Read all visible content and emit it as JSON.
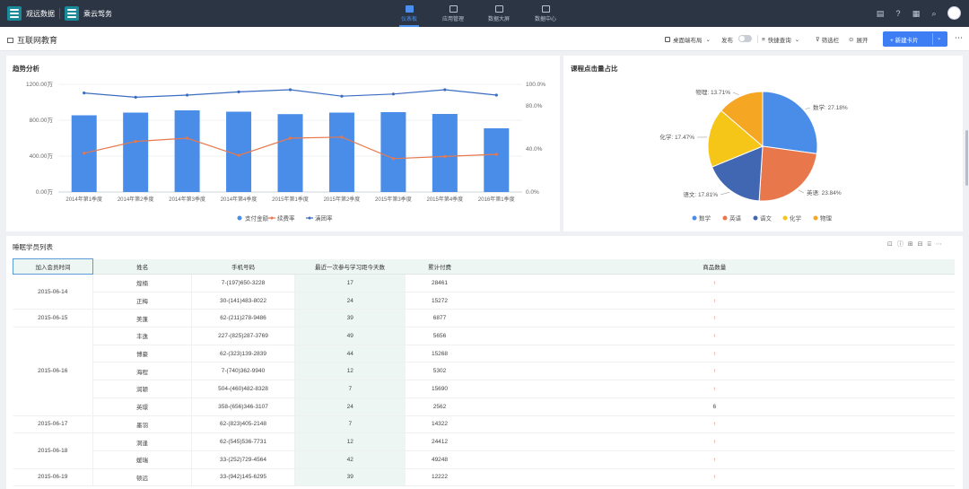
{
  "topbar": {
    "brand1": "观远数据",
    "brand2": "乘云驾务",
    "nav": [
      {
        "label": "仪表板",
        "icon": "bar-chart-icon",
        "active": true
      },
      {
        "label": "应用管理",
        "icon": "apps-icon",
        "active": false
      },
      {
        "label": "数据大屏",
        "icon": "screen-icon",
        "active": false
      },
      {
        "label": "数据中心",
        "icon": "database-icon",
        "active": false
      }
    ]
  },
  "subbar": {
    "page_title": "互联网教育",
    "desktop_layout": "桌面端布局",
    "publish": "发布",
    "quick_query": "快捷查询",
    "filter": "筛选栏",
    "expand": "展开",
    "new_card": "新建卡片"
  },
  "trend": {
    "title": "趋势分析",
    "left_ticks": [
      "1200.00万",
      "800.00万",
      "400.00万",
      "0.00万"
    ],
    "right_ticks": [
      "100.0%",
      "80.0%",
      "40.0%",
      "0.0%"
    ]
  },
  "pie_panel": {
    "title": "课程点击量占比",
    "labels": [
      "数学: 27.18%",
      "英语: 23.84%",
      "语文: 17.81%",
      "化学: 17.47%",
      "物理: 13.71%"
    ]
  },
  "chart_data": [
    {
      "type": "bar",
      "title": "趋势分析",
      "categories": [
        "2014年第1季度",
        "2014年第2季度",
        "2014年第3季度",
        "2014年第4季度",
        "2015年第1季度",
        "2015年第2季度",
        "2015年第3季度",
        "2015年第4季度",
        "2016年第1季度"
      ],
      "series": [
        {
          "name": "支付金额",
          "type": "bar",
          "axis": "left",
          "color": "#4a8de8",
          "values": [
            855,
            885,
            910,
            895,
            868,
            885,
            890,
            870,
            710
          ]
        },
        {
          "name": "续费率",
          "type": "line",
          "axis": "right",
          "color": "#e8784c",
          "values": [
            36,
            47,
            50,
            34,
            50,
            51,
            31,
            33,
            35
          ]
        },
        {
          "name": "满团率",
          "type": "line",
          "axis": "right",
          "color": "#3a6cc0",
          "values": [
            92,
            88,
            90,
            93,
            95,
            89,
            91,
            95,
            90
          ]
        }
      ],
      "ylim_left": [
        0,
        1200
      ],
      "ylim_right": [
        0,
        100
      ],
      "legend": "bottom"
    },
    {
      "type": "pie",
      "title": "课程点击量占比",
      "categories": [
        "数学",
        "英语",
        "语文",
        "化学",
        "物理"
      ],
      "values": [
        27.18,
        23.84,
        17.81,
        17.47,
        13.71
      ],
      "colors": [
        "#4a8de8",
        "#e8784c",
        "#4267b2",
        "#f5c518",
        "#f5a623"
      ],
      "legend": "bottom"
    }
  ],
  "table": {
    "title": "睡眠学员列表",
    "columns": [
      "加入会员时间",
      "姓名",
      "手机号码",
      "最近一次参与学习距今天数",
      "累计付费",
      "商品数量"
    ],
    "groups": [
      {
        "date": "2015-06-14",
        "rows": [
          {
            "name": "煌楠",
            "phone": "7-(197)650-3228",
            "days": "17",
            "paid": "28461",
            "qty": "↑"
          },
          {
            "name": "正梅",
            "phone": "30-(141)483-8022",
            "days": "24",
            "paid": "15272",
            "qty": "↑"
          }
        ]
      },
      {
        "date": "2015-06-15",
        "rows": [
          {
            "name": "美蓬",
            "phone": "62-(211)278-9486",
            "days": "39",
            "paid": "6877",
            "qty": "↑"
          }
        ]
      },
      {
        "date": "2015-06-16",
        "rows": [
          {
            "name": "丰逸",
            "phone": "227-(825)287-3769",
            "days": "49",
            "paid": "5656",
            "qty": "↑"
          },
          {
            "name": "博豪",
            "phone": "62-(323)139-2839",
            "days": "44",
            "paid": "15268",
            "qty": "↑"
          },
          {
            "name": "海程",
            "phone": "7-(740)362-9940",
            "days": "12",
            "paid": "5302",
            "qty": "↑"
          },
          {
            "name": "润颖",
            "phone": "504-(460)482-8328",
            "days": "7",
            "paid": "15690",
            "qty": "↑"
          },
          {
            "name": "英璟",
            "phone": "358-(656)346-3107",
            "days": "24",
            "paid": "2562",
            "qty": "6"
          }
        ]
      },
      {
        "date": "2015-06-17",
        "rows": [
          {
            "name": "墨羽",
            "phone": "62-(823)405-2148",
            "days": "7",
            "paid": "14322",
            "qty": "↑"
          }
        ]
      },
      {
        "date": "2015-06-18",
        "rows": [
          {
            "name": "洞逢",
            "phone": "62-(545)536-7731",
            "days": "12",
            "paid": "24412",
            "qty": "↑"
          },
          {
            "name": "媛瑞",
            "phone": "33-(252)729-4564",
            "days": "42",
            "paid": "49248",
            "qty": "↑"
          }
        ]
      },
      {
        "date": "2015-06-19",
        "rows": [
          {
            "name": "顿远",
            "phone": "33-(942)145-6295",
            "days": "39",
            "paid": "12222",
            "qty": "↑"
          }
        ]
      }
    ]
  }
}
